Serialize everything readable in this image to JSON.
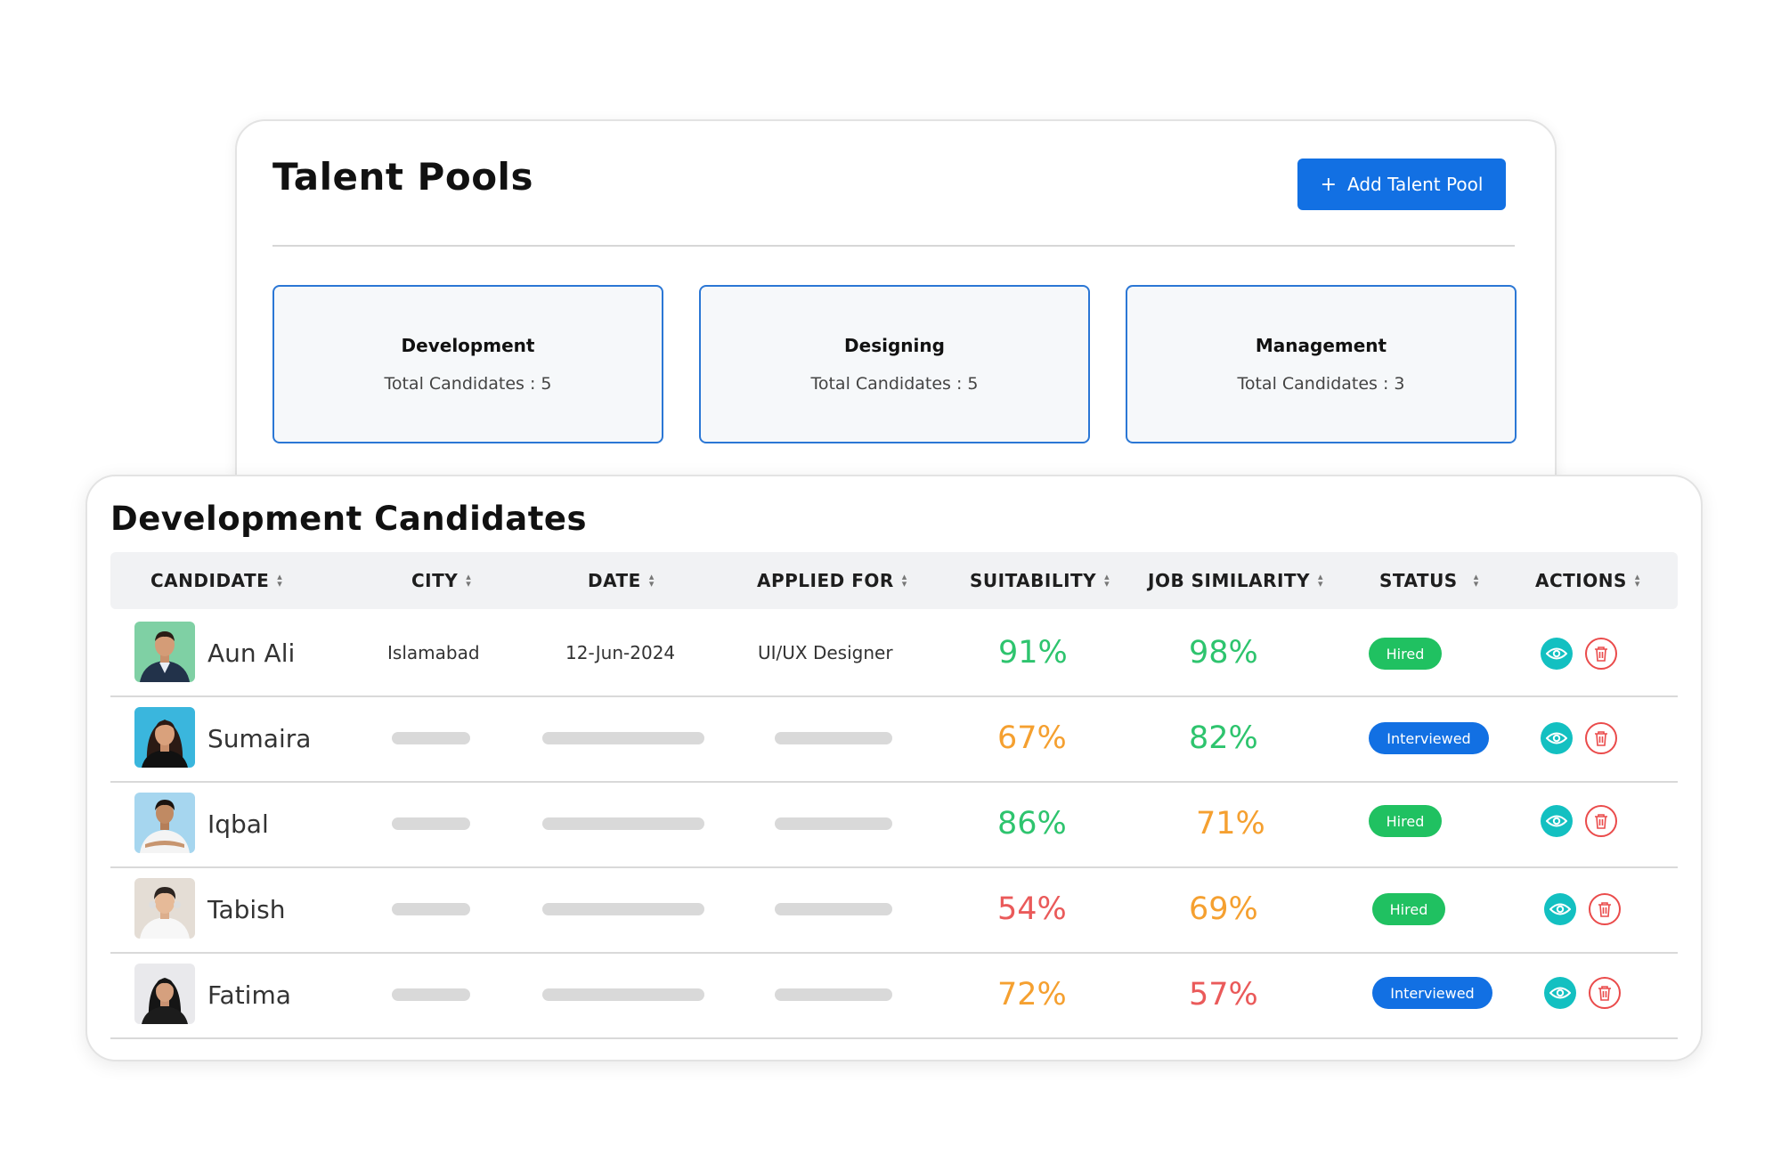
{
  "pools": {
    "title": "Talent Pools",
    "add_button_icon": "plus-icon",
    "add_button_label": "Add Talent Pool",
    "items": [
      {
        "name": "Development",
        "count_text": "Total Candidates : 5"
      },
      {
        "name": "Designing",
        "count_text": "Total Candidates : 5"
      },
      {
        "name": "Management",
        "count_text": "Total Candidates : 3"
      }
    ]
  },
  "candidates": {
    "title": "Development Candidates",
    "columns": [
      "CANDIDATE",
      "CITY",
      "DATE",
      "APPLIED FOR",
      "SUITABILITY",
      "JOB SIMILARITY",
      "STATUS",
      "ACTIONS"
    ],
    "rows": [
      {
        "name": "Aun Ali",
        "city": "Islamabad",
        "date": "12-Jun-2024",
        "applied_for": "UI/UX Designer",
        "suitability": "91%",
        "job_similarity": "98%",
        "status": "Hired"
      },
      {
        "name": "Sumaira",
        "city": "",
        "date": "",
        "applied_for": "",
        "suitability": "67%",
        "job_similarity": "82%",
        "status": "Interviewed"
      },
      {
        "name": "Iqbal",
        "city": "",
        "date": "",
        "applied_for": "",
        "suitability": "86%",
        "job_similarity": "71%",
        "status": "Hired"
      },
      {
        "name": "Tabish",
        "city": "",
        "date": "",
        "applied_for": "",
        "suitability": "54%",
        "job_similarity": "69%",
        "status": "Hired"
      },
      {
        "name": "Fatima",
        "city": "",
        "date": "",
        "applied_for": "",
        "suitability": "72%",
        "job_similarity": "57%",
        "status": "Interviewed"
      }
    ]
  },
  "colors": {
    "primary_blue": "#1270e3",
    "pool_border": "#2b77d5",
    "score_green": "#2ec46e",
    "score_orange": "#f5a030",
    "score_red": "#ea5a5a",
    "status_hired": "#20c161",
    "status_interviewed": "#1270e3",
    "view_action": "#13c0c1",
    "delete_action": "#ea4b4b"
  }
}
